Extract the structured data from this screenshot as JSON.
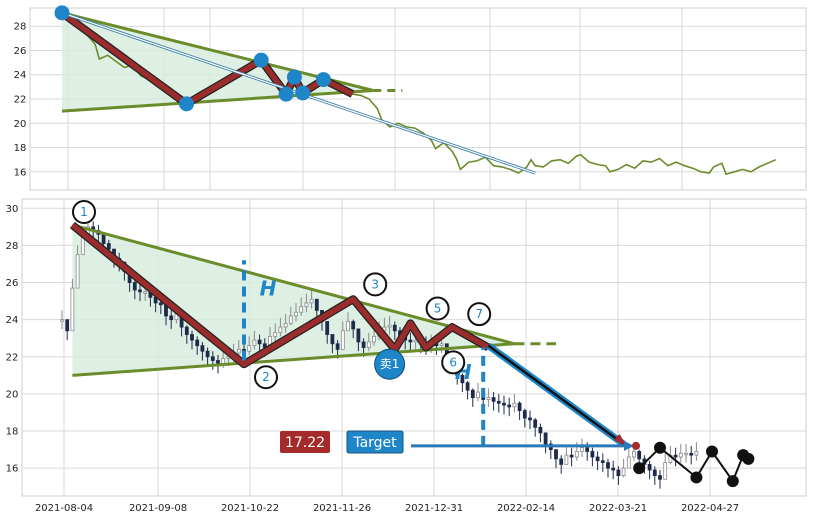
{
  "chart_data": {
    "type": "line",
    "x_tick_labels": [
      "2021-08-04",
      "2021-09-08",
      "2021-10-22",
      "2021-11-26",
      "2021-12-31",
      "2022-02-14",
      "2022-03-21",
      "2022-04-27"
    ],
    "top_panel": {
      "ylim": [
        14.5,
        29.5
      ],
      "y_ticks": [
        16,
        18,
        20,
        22,
        24,
        26,
        28
      ],
      "price_series": [
        [
          0,
          29.1
        ],
        [
          3,
          28.2
        ],
        [
          6,
          27.3
        ],
        [
          8,
          26.5
        ],
        [
          9,
          25.3
        ],
        [
          11,
          25.6
        ],
        [
          13,
          25.1
        ],
        [
          15,
          24.6
        ],
        [
          17,
          24.8
        ],
        [
          19,
          23.9
        ],
        [
          21,
          23.6
        ],
        [
          23,
          23.1
        ],
        [
          25,
          22.6
        ],
        [
          27,
          22.2
        ],
        [
          29,
          21.8
        ],
        [
          30,
          21.6
        ],
        [
          32,
          22.3
        ],
        [
          34,
          22.7
        ],
        [
          36,
          22.9
        ],
        [
          38,
          23.4
        ],
        [
          40,
          23.7
        ],
        [
          42,
          24.2
        ],
        [
          44,
          24.6
        ],
        [
          46,
          24.9
        ],
        [
          48,
          25.2
        ],
        [
          50,
          24.8
        ],
        [
          51,
          23.8
        ],
        [
          52,
          22.9
        ],
        [
          54,
          22.4
        ],
        [
          55,
          23.5
        ],
        [
          56,
          23.8
        ],
        [
          57,
          22.9
        ],
        [
          58,
          22.5
        ],
        [
          60,
          22.8
        ],
        [
          62,
          23.3
        ],
        [
          63,
          23.6
        ],
        [
          64,
          23.2
        ],
        [
          66,
          22.8
        ],
        [
          68,
          22.6
        ],
        [
          70,
          22.4
        ],
        [
          72,
          22.3
        ],
        [
          74,
          22.0
        ],
        [
          76,
          21.2
        ],
        [
          77,
          20.3
        ],
        [
          79,
          19.7
        ],
        [
          81,
          20.0
        ],
        [
          83,
          19.7
        ],
        [
          85,
          19.6
        ],
        [
          87,
          19.2
        ],
        [
          89,
          18.6
        ],
        [
          90,
          17.9
        ],
        [
          92,
          18.4
        ],
        [
          94,
          17.7
        ],
        [
          95,
          17.1
        ],
        [
          96,
          16.2
        ],
        [
          98,
          16.8
        ],
        [
          100,
          16.9
        ],
        [
          102,
          17.2
        ],
        [
          104,
          16.5
        ],
        [
          106,
          16.4
        ],
        [
          108,
          16.2
        ],
        [
          110,
          15.9
        ],
        [
          112,
          16.4
        ],
        [
          113,
          17.0
        ],
        [
          114,
          16.5
        ],
        [
          116,
          16.4
        ],
        [
          118,
          16.9
        ],
        [
          120,
          17.0
        ],
        [
          122,
          16.7
        ],
        [
          124,
          17.3
        ],
        [
          125,
          17.4
        ],
        [
          127,
          16.8
        ],
        [
          129,
          16.6
        ],
        [
          131,
          16.5
        ],
        [
          132,
          16.0
        ],
        [
          134,
          16.2
        ],
        [
          136,
          16.6
        ],
        [
          138,
          16.3
        ],
        [
          140,
          16.9
        ],
        [
          142,
          16.8
        ],
        [
          144,
          17.1
        ],
        [
          146,
          16.5
        ],
        [
          148,
          16.8
        ],
        [
          150,
          16.5
        ],
        [
          152,
          16.3
        ],
        [
          154,
          16.0
        ],
        [
          156,
          15.9
        ],
        [
          157,
          16.4
        ],
        [
          159,
          16.7
        ],
        [
          160,
          15.8
        ],
        [
          162,
          16.0
        ],
        [
          164,
          16.2
        ],
        [
          166,
          16.0
        ],
        [
          168,
          16.4
        ],
        [
          170,
          16.7
        ],
        [
          172,
          17.0
        ]
      ],
      "zigzag": [
        [
          0,
          29.1
        ],
        [
          30,
          21.6
        ],
        [
          48,
          25.2
        ],
        [
          54,
          22.4
        ],
        [
          56,
          23.8
        ],
        [
          58,
          22.5
        ],
        [
          63,
          23.6
        ],
        [
          70,
          22.4
        ]
      ],
      "upper_line": [
        [
          0,
          29.1
        ],
        [
          75,
          22.7
        ]
      ],
      "lower_line": [
        [
          0,
          21.0
        ],
        [
          75,
          22.7
        ]
      ],
      "projection": [
        [
          75,
          22.7
        ],
        [
          82,
          22.7
        ]
      ],
      "arrow": [
        [
          0,
          29.1
        ],
        [
          114,
          15.9
        ]
      ],
      "markers": [
        [
          0,
          29.1
        ],
        [
          30,
          21.6
        ],
        [
          48,
          25.2
        ],
        [
          54,
          22.4
        ],
        [
          56,
          23.8
        ],
        [
          58,
          22.5
        ],
        [
          63,
          23.6
        ]
      ]
    },
    "bottom_panel": {
      "ylim": [
        14.5,
        30.5
      ],
      "y_ticks": [
        16,
        18,
        20,
        22,
        24,
        26,
        28,
        30
      ],
      "candles": [
        [
          0,
          24.0
        ],
        [
          1,
          23.4
        ],
        [
          2,
          25.7
        ],
        [
          3,
          27.5
        ],
        [
          4,
          28.5
        ],
        [
          5,
          29.0
        ],
        [
          6,
          28.8
        ],
        [
          7,
          28.6
        ],
        [
          8,
          28.1
        ],
        [
          9,
          27.8
        ],
        [
          10,
          27.3
        ],
        [
          11,
          27.1
        ],
        [
          12,
          26.6
        ],
        [
          13,
          26.0
        ],
        [
          14,
          25.6
        ],
        [
          15,
          25.5
        ],
        [
          16,
          25.5
        ],
        [
          17,
          25.2
        ],
        [
          18,
          24.9
        ],
        [
          19,
          24.8
        ],
        [
          20,
          24.2
        ],
        [
          21,
          24.0
        ],
        [
          22,
          24.3
        ],
        [
          23,
          23.6
        ],
        [
          24,
          23.2
        ],
        [
          25,
          22.9
        ],
        [
          26,
          22.6
        ],
        [
          27,
          22.3
        ],
        [
          28,
          22.0
        ],
        [
          29,
          21.8
        ],
        [
          30,
          21.6
        ],
        [
          31,
          21.9
        ],
        [
          32,
          22.0
        ],
        [
          33,
          22.2
        ],
        [
          34,
          22.4
        ],
        [
          35,
          22.3
        ],
        [
          36,
          22.6
        ],
        [
          37,
          22.9
        ],
        [
          38,
          22.7
        ],
        [
          39,
          22.5
        ],
        [
          40,
          23.1
        ],
        [
          41,
          23.3
        ],
        [
          42,
          23.6
        ],
        [
          43,
          23.8
        ],
        [
          44,
          24.2
        ],
        [
          45,
          24.4
        ],
        [
          46,
          24.7
        ],
        [
          47,
          24.9
        ],
        [
          48,
          25.1
        ],
        [
          49,
          24.5
        ],
        [
          50,
          23.9
        ],
        [
          51,
          23.2
        ],
        [
          52,
          22.7
        ],
        [
          53,
          22.4
        ],
        [
          54,
          23.4
        ],
        [
          55,
          23.9
        ],
        [
          56,
          23.5
        ],
        [
          57,
          22.8
        ],
        [
          58,
          22.5
        ],
        [
          59,
          22.8
        ],
        [
          60,
          23.1
        ],
        [
          61,
          23.4
        ],
        [
          62,
          23.6
        ],
        [
          63,
          23.7
        ],
        [
          64,
          23.4
        ],
        [
          65,
          23.1
        ],
        [
          66,
          22.9
        ],
        [
          67,
          22.8
        ],
        [
          68,
          22.9
        ],
        [
          69,
          22.7
        ],
        [
          70,
          22.6
        ],
        [
          71,
          22.7
        ],
        [
          72,
          22.6
        ],
        [
          73,
          22.7
        ],
        [
          74,
          22.2
        ],
        [
          75,
          21.6
        ],
        [
          76,
          21.0
        ],
        [
          77,
          20.6
        ],
        [
          78,
          20.2
        ],
        [
          79,
          19.8
        ],
        [
          80,
          20.1
        ],
        [
          81,
          19.7
        ],
        [
          82,
          19.8
        ],
        [
          83,
          19.6
        ],
        [
          84,
          19.5
        ],
        [
          85,
          19.4
        ],
        [
          86,
          19.3
        ],
        [
          87,
          19.5
        ],
        [
          88,
          19.1
        ],
        [
          89,
          18.7
        ],
        [
          90,
          18.6
        ],
        [
          91,
          18.2
        ],
        [
          92,
          17.9
        ],
        [
          93,
          17.3
        ],
        [
          94,
          17.0
        ],
        [
          95,
          16.5
        ],
        [
          96,
          16.2
        ],
        [
          97,
          16.7
        ],
        [
          98,
          16.6
        ],
        [
          99,
          16.9
        ],
        [
          100,
          17.1
        ],
        [
          101,
          16.9
        ],
        [
          102,
          16.6
        ],
        [
          103,
          16.4
        ],
        [
          104,
          16.3
        ],
        [
          105,
          16.0
        ],
        [
          106,
          15.9
        ],
        [
          107,
          15.6
        ],
        [
          108,
          16.0
        ],
        [
          109,
          16.6
        ],
        [
          110,
          16.9
        ],
        [
          111,
          16.5
        ],
        [
          112,
          16.2
        ],
        [
          113,
          15.9
        ],
        [
          114,
          15.6
        ],
        [
          115,
          15.4
        ],
        [
          116,
          16.3
        ],
        [
          117,
          16.7
        ],
        [
          118,
          16.6
        ],
        [
          119,
          16.8
        ],
        [
          120,
          16.8
        ],
        [
          121,
          16.7
        ],
        [
          122,
          16.9
        ]
      ],
      "zigzag": [
        [
          2,
          29.1
        ],
        [
          35,
          21.6
        ],
        [
          56,
          25.1
        ],
        [
          64,
          22.4
        ],
        [
          67,
          23.8
        ],
        [
          70,
          22.5
        ],
        [
          75,
          23.6
        ],
        [
          82,
          22.5
        ]
      ],
      "upper_line": [
        [
          2,
          29.1
        ],
        [
          87,
          22.7
        ]
      ],
      "lower_line": [
        [
          2,
          21.0
        ],
        [
          87,
          22.7
        ]
      ],
      "projection": [
        [
          87,
          22.7
        ],
        [
          95,
          22.7
        ]
      ],
      "breakdown_path": [
        [
          82,
          22.6
        ],
        [
          108,
          17.3
        ]
      ],
      "pattern_labels": [
        {
          "label": "1",
          "x": 0,
          "y": 29.8
        },
        {
          "label": "2",
          "x": 35,
          "y": 20.9
        },
        {
          "label": "3",
          "x": 56,
          "y": 25.9
        },
        {
          "label": "5",
          "x": 68,
          "y": 24.6
        },
        {
          "label": "6",
          "x": 71,
          "y": 21.7
        },
        {
          "label": "7",
          "x": 76,
          "y": 24.3
        }
      ],
      "post_pattern_dots": [
        [
          111,
          16.0
        ],
        [
          115,
          17.1
        ],
        [
          122,
          15.5
        ],
        [
          125,
          16.9
        ],
        [
          129,
          15.3
        ],
        [
          131,
          16.7
        ],
        [
          132,
          16.5
        ]
      ],
      "height_marker_left": {
        "x": 35,
        "y_from": 21.8,
        "y_to": 27.2,
        "label": "H"
      },
      "height_marker_right": {
        "x": 81,
        "y_from": 17.2,
        "y_to": 22.5,
        "label": "H"
      },
      "sell_signal": {
        "label": "卖1",
        "x": 63,
        "y": 21.6
      },
      "target_price_badge": "17.22",
      "target_badge": "Target",
      "target_arrow": {
        "x_from": 72,
        "x_to": 110,
        "y": 17.2
      }
    },
    "colors": {
      "zigzag_fill": "#9b2c2c",
      "trend_lines": "#6a8c2a",
      "triangle_fill": "#d6ecdd",
      "marker_blue": "#1e86c8",
      "candle_up": "#8a8a8a",
      "candle_down": "#1f2a4a",
      "breakdown_line": "#1e86c8",
      "dots": "#111111",
      "badge_red": "#a52a2a",
      "badge_blue": "#1e86c8"
    }
  }
}
